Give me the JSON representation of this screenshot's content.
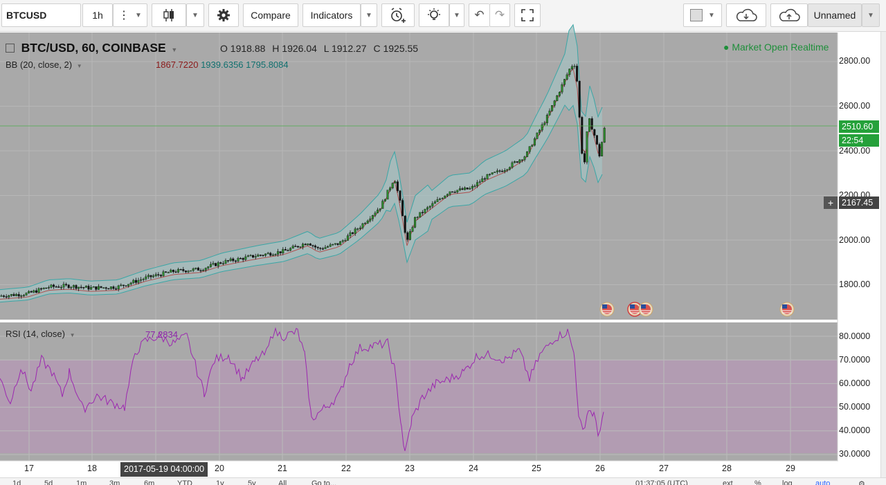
{
  "toolbar": {
    "symbol": "BTCUSD",
    "interval": "1h",
    "compare_label": "Compare",
    "indicators_label": "Indicators",
    "layout_name": "Unnamed",
    "icons": [
      "more-vert-icon",
      "candles-icon",
      "gear-icon",
      "alarm-add-icon",
      "bulb-icon",
      "undo-icon",
      "redo-icon",
      "fullscreen-icon",
      "cloud-download-icon",
      "cloud-upload-icon"
    ]
  },
  "legend": {
    "title": "BTC/USD, 60, COINBASE",
    "o_label": "O",
    "o_value": "1918.88",
    "h_label": "H",
    "h_value": "1926.04",
    "l_label": "L",
    "l_value": "1912.27",
    "c_label": "C",
    "c_value": "1925.55",
    "bb_label": "BB (20, close, 2)",
    "bb_basis": "1867.7220",
    "bb_upper": "1939.6356",
    "bb_lower": "1795.8084",
    "market_status": "Market Open",
    "realtime": "Realtime"
  },
  "rsi": {
    "label": "RSI (14, close)",
    "value": "77.2834"
  },
  "price_axis": {
    "ticks": [
      "2800.00",
      "2600.00",
      "2400.00",
      "2200.00",
      "2000.00",
      "1800.00"
    ],
    "last_price": "2510.60",
    "countdown": "22:54",
    "crosshair_price": "2167.45"
  },
  "rsi_axis": {
    "ticks": [
      "80.0000",
      "70.0000",
      "60.0000",
      "50.0000",
      "40.0000",
      "30.0000"
    ]
  },
  "time_axis": {
    "labels": [
      "17",
      "18",
      "20",
      "21",
      "22",
      "23",
      "24",
      "25",
      "26",
      "27",
      "28",
      "29"
    ],
    "crosshair_time": "2017-05-19 04:00:00"
  },
  "bottom_bar": {
    "ranges": [
      "1d",
      "5d",
      "1m",
      "3m",
      "6m",
      "YTD",
      "1y",
      "5y",
      "All",
      "Go to..."
    ],
    "clock": "01:37:05 (UTC)",
    "options": [
      "ext",
      "%",
      "log",
      "auto"
    ]
  },
  "colors": {
    "background": "#a9a9a9",
    "bb_band_fill": "#a5c0c0",
    "bb_upper_line": "#3aa6a6",
    "bb_basis_line": "#b05050",
    "candle_up": "#2e8b2e",
    "candle_down": "#111111",
    "rsi_line": "#9c27b0",
    "rsi_band": "#b49ab4",
    "accent_green": "#25a13a"
  }
}
